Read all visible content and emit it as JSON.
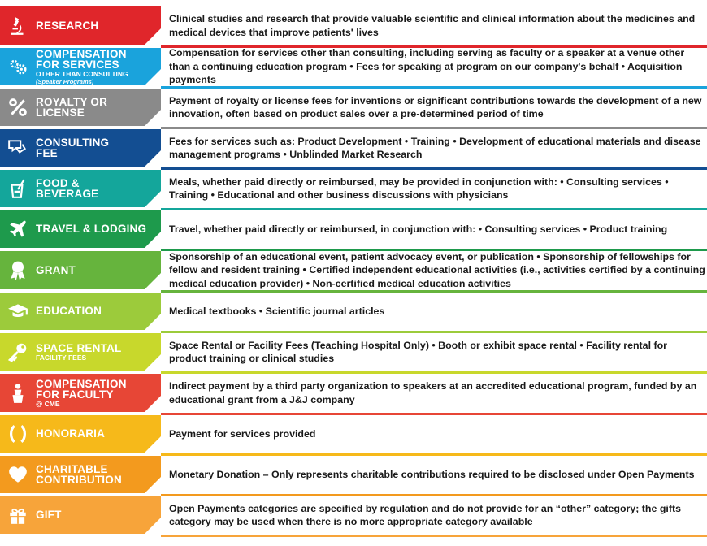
{
  "rows": [
    {
      "label": "RESEARCH",
      "sub": "",
      "sub2": "",
      "color": "#e0262b",
      "icon": "microscope-icon",
      "description": "Clinical studies and research that provide valuable scientific and clinical information about the medicines and medical devices that improve patients' lives"
    },
    {
      "label": "COMPENSATION FOR SERVICES",
      "sub": "OTHER THAN CONSULTING",
      "sub2": "(Speaker Programs)",
      "color": "#1aa3dc",
      "icon": "gears-icon",
      "description": "Compensation for services other than consulting, including serving as faculty or a speaker at a venue other than a continuing education program • Fees for speaking at program on our company's behalf • Acquisition payments"
    },
    {
      "label": "ROYALTY OR LICENSE",
      "sub": "",
      "sub2": "",
      "color": "#8a8a8a",
      "icon": "percent-icon",
      "description": "Payment of royalty or license fees for inventions or significant contributions towards the development of a new innovation, often based on product sales over a pre-determined period of time"
    },
    {
      "label": "CONSULTING FEE",
      "sub": "",
      "sub2": "",
      "color": "#134e92",
      "icon": "handshake-icon",
      "description": "Fees for services such as: Product Development • Training • Development of educational materials and disease management programs • Unblinded Market Research"
    },
    {
      "label": "FOOD & BEVERAGE",
      "sub": "",
      "sub2": "",
      "color": "#14a69b",
      "icon": "drink-icon",
      "description": "Meals, whether paid directly or reimbursed, may be provided in conjunction with: • Consulting services • Training • Educational and other business discussions with physicians"
    },
    {
      "label": "TRAVEL & LODGING",
      "sub": "",
      "sub2": "",
      "color": "#1e9a4c",
      "icon": "airplane-icon",
      "description": "Travel, whether paid directly or reimbursed, in conjunction with: • Consulting services • Product training"
    },
    {
      "label": "GRANT",
      "sub": "",
      "sub2": "",
      "color": "#66b43d",
      "icon": "ribbon-icon",
      "description": "Sponsorship of an educational event, patient advocacy event, or publication • Sponsorship of fellowships for fellow and resident training • Certified independent educational activities (i.e., activities certified by a continuing medical education provider) • Non-certified medical education activities"
    },
    {
      "label": "EDUCATION",
      "sub": "",
      "sub2": "",
      "color": "#9ccb3b",
      "icon": "graduation-cap-icon",
      "description": "Medical textbooks • Scientific journal articles"
    },
    {
      "label": "SPACE RENTAL",
      "sub": "FACILITY FEES",
      "sub2": "",
      "color": "#c8d82c",
      "icon": "key-icon",
      "description": "Space Rental or Facility Fees (Teaching Hospital Only) • Booth or exhibit space rental • Facility rental for product training or clinical studies"
    },
    {
      "label": "COMPENSATION FOR FACULTY",
      "sub": "@ CME",
      "sub2": "",
      "color": "#e74636",
      "icon": "speaker-person-icon",
      "description": "Indirect payment by a third party organization to speakers at an accredited educational program, funded by an educational grant from a J&J company"
    },
    {
      "label": "HONORARIA",
      "sub": "",
      "sub2": "",
      "color": "#f6b91a",
      "icon": "laurel-icon",
      "description": "Payment for services provided"
    },
    {
      "label": "CHARITABLE CONTRIBUTION",
      "sub": "",
      "sub2": "",
      "color": "#f39a1e",
      "icon": "heart-icon",
      "description": "Monetary Donation – Only represents charitable contributions required to be disclosed under Open Payments"
    },
    {
      "label": "GIFT",
      "sub": "",
      "sub2": "",
      "color": "#f7a43a",
      "icon": "gift-icon",
      "description": "Open Payments categories are specified by regulation and do not provide for an “other” category; the gifts category may be used when there is no more appropriate category available"
    }
  ]
}
